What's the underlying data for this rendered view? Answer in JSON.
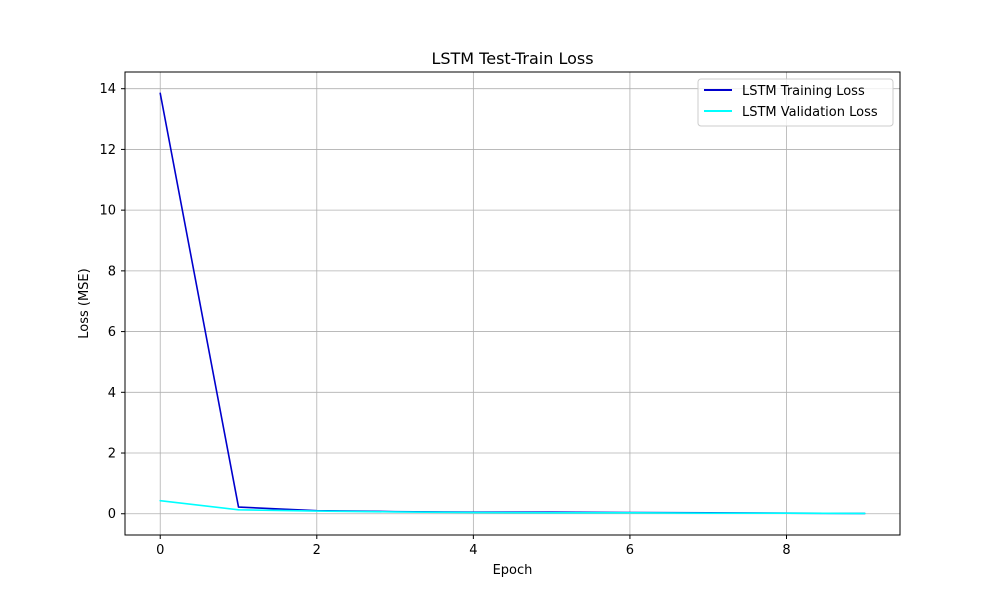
{
  "chart_data": {
    "type": "line",
    "title": "LSTM Test-Train Loss",
    "xlabel": "Epoch",
    "ylabel": "Loss (MSE)",
    "x": [
      0,
      1,
      2,
      3,
      4,
      5,
      6,
      7,
      8,
      9
    ],
    "xlim": [
      -0.45,
      9.45
    ],
    "ylim": [
      -0.7,
      14.55
    ],
    "xticks": [
      0,
      2,
      4,
      6,
      8
    ],
    "yticks": [
      0,
      2,
      4,
      6,
      8,
      10,
      12,
      14
    ],
    "grid": true,
    "legend_position": "top-right",
    "series": [
      {
        "name": "LSTM Training Loss",
        "color": "#0000cd",
        "values": [
          13.85,
          0.22,
          0.1,
          0.07,
          0.05,
          0.05,
          0.04,
          0.03,
          0.02,
          0.01
        ]
      },
      {
        "name": "LSTM Validation Loss",
        "color": "#00ffff",
        "values": [
          0.43,
          0.13,
          0.09,
          0.06,
          0.04,
          0.03,
          0.03,
          0.02,
          0.02,
          0.01
        ]
      }
    ]
  }
}
